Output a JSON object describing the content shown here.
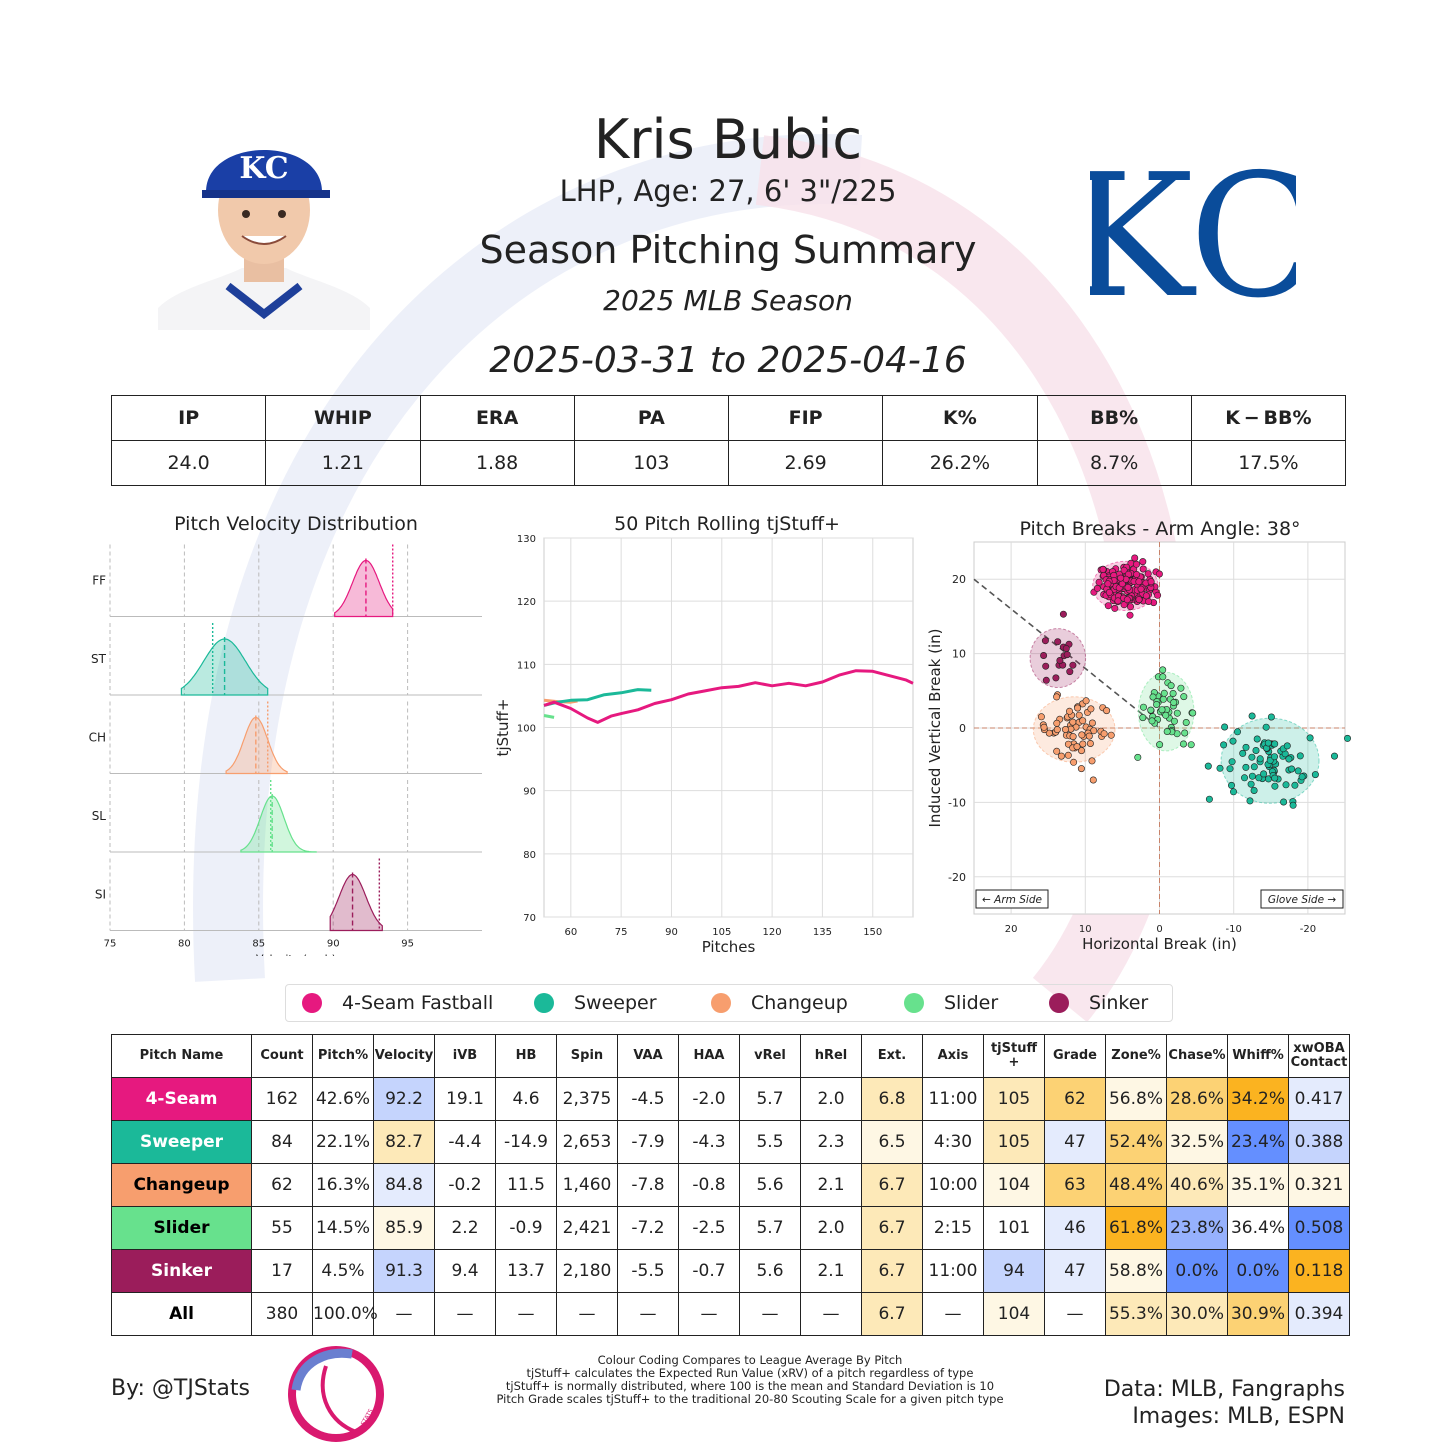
{
  "header": {
    "name": "Kris Bubic",
    "info": "LHP, Age: 27, 6' 3\"/225",
    "title": "Season Pitching Summary",
    "season": "2025 MLB Season",
    "dates": "2025-03-31 to 2025-04-16",
    "team_logo_text": "KC"
  },
  "summary": {
    "headers": [
      "IP",
      "WHIP",
      "ERA",
      "PA",
      "FIP",
      "K%",
      "BB%",
      "K − BB%"
    ],
    "values": [
      "24.0",
      "1.21",
      "1.88",
      "103",
      "2.69",
      "26.2%",
      "8.7%",
      "17.5%"
    ]
  },
  "colors": {
    "FF": "#e6197f",
    "ST": "#1bb999",
    "CH": "#f79e6e",
    "SL": "#67e18d",
    "SI": "#9b1d5b",
    "good_dark": "#fbb320",
    "good_mid": "#fcd274",
    "good_light": "#fde9b8",
    "good_pale": "#fef7e4",
    "bad_dark": "#648fff",
    "bad_mid": "#96b1fd",
    "bad_light": "#c5d4fd",
    "bad_pale": "#e4ebfd",
    "neutral": "#ffffff"
  },
  "chart_data": [
    {
      "type": "area",
      "title": "Pitch Velocity Distribution",
      "xlabel": "Velocity (mph)",
      "xlim": [
        75,
        100
      ],
      "xticks": [
        75,
        80,
        85,
        90,
        95
      ],
      "series": [
        {
          "name": "FF",
          "mean": 92.2,
          "sd": 0.9,
          "min": 90.1,
          "max": 94.0,
          "league": 94.0
        },
        {
          "name": "ST",
          "mean": 82.7,
          "sd": 1.4,
          "min": 79.8,
          "max": 85.6,
          "league": 81.9
        },
        {
          "name": "CH",
          "mean": 84.8,
          "sd": 0.8,
          "min": 82.8,
          "max": 86.9,
          "league": 85.6
        },
        {
          "name": "SL",
          "mean": 85.9,
          "sd": 0.8,
          "min": 83.8,
          "max": 88.9,
          "league": 85.8
        },
        {
          "name": "SI",
          "mean": 91.3,
          "sd": 0.9,
          "min": 89.8,
          "max": 93.3,
          "league": 93.1
        }
      ]
    },
    {
      "type": "line",
      "title": "50 Pitch Rolling tjStuff+",
      "xlabel": "Pitches",
      "ylabel": "tjStuff+",
      "xlim": [
        52,
        162
      ],
      "ylim": [
        70,
        130
      ],
      "xticks": [
        60,
        75,
        90,
        105,
        120,
        135,
        150
      ],
      "yticks": [
        70,
        80,
        90,
        100,
        110,
        120,
        130
      ],
      "series": [
        {
          "name": "FF",
          "x": [
            52,
            55,
            60,
            65,
            68,
            72,
            75,
            80,
            85,
            90,
            95,
            100,
            105,
            110,
            115,
            120,
            125,
            130,
            135,
            140,
            145,
            150,
            155,
            160,
            162
          ],
          "y": [
            103.5,
            104,
            103,
            101.5,
            100.8,
            101.8,
            102.2,
            102.8,
            103.8,
            104.4,
            105.3,
            105.8,
            106.3,
            106.5,
            107.1,
            106.6,
            107.0,
            106.6,
            107.2,
            108.3,
            109.0,
            108.9,
            108.2,
            107.5,
            107.0
          ]
        },
        {
          "name": "ST",
          "x": [
            52,
            56,
            60,
            65,
            70,
            75,
            80,
            84
          ],
          "y": [
            103.5,
            104,
            104.3,
            104.4,
            105.2,
            105.5,
            106.0,
            105.9
          ]
        },
        {
          "name": "CH",
          "x": [
            52,
            56,
            60,
            62
          ],
          "y": [
            104.3,
            104.1,
            104.0,
            104.2
          ]
        },
        {
          "name": "SL",
          "x": [
            52,
            55
          ],
          "y": [
            101.9,
            101.6
          ]
        }
      ]
    },
    {
      "type": "scatter",
      "title": "Pitch Breaks - Arm Angle: 38°",
      "xlabel": "Horizontal Break (in)",
      "ylabel": "Induced Vertical Break (in)",
      "xlim": [
        25,
        -25
      ],
      "ylim": [
        -25,
        25
      ],
      "xticks": [
        20,
        10,
        0,
        -10,
        -20
      ],
      "yticks": [
        -20,
        -10,
        0,
        10,
        20
      ],
      "arm_side_label": "← Arm Side",
      "glove_side_label": "Glove Side →",
      "clusters": [
        {
          "name": "FF",
          "hb": 4.6,
          "ivb": 19.1,
          "sx": 2.0,
          "sy": 1.5,
          "n": 162
        },
        {
          "name": "ST",
          "hb": -14.9,
          "ivb": -4.4,
          "sx": 3.0,
          "sy": 2.6,
          "n": 84
        },
        {
          "name": "CH",
          "hb": 11.5,
          "ivb": -0.2,
          "sx": 2.5,
          "sy": 2.0,
          "n": 62
        },
        {
          "name": "SL",
          "hb": -0.9,
          "ivb": 2.2,
          "sx": 1.7,
          "sy": 2.4,
          "n": 55
        },
        {
          "name": "SI",
          "hb": 13.7,
          "ivb": 9.4,
          "sx": 1.7,
          "sy": 1.8,
          "n": 17
        }
      ]
    }
  ],
  "legend": [
    {
      "key": "FF",
      "label": "4-Seam Fastball"
    },
    {
      "key": "ST",
      "label": "Sweeper"
    },
    {
      "key": "CH",
      "label": "Changeup"
    },
    {
      "key": "SL",
      "label": "Slider"
    },
    {
      "key": "SI",
      "label": "Sinker"
    }
  ],
  "pitch_table": {
    "headers": [
      "Pitch Name",
      "Count",
      "Pitch%",
      "Velocity",
      "iVB",
      "HB",
      "Spin",
      "VAA",
      "HAA",
      "vRel",
      "hRel",
      "Ext.",
      "Axis",
      "tjStuff +",
      "Grade",
      "Zone%",
      "Chase%",
      "Whiff%",
      "xwOBA Contact"
    ],
    "rows": [
      {
        "key": "FF",
        "name": "4-Seam",
        "text_color": "#ffffff",
        "cells": [
          "162",
          "42.6%",
          "92.2",
          "19.1",
          "4.6",
          "2,375",
          "-4.5",
          "-2.0",
          "5.7",
          "2.0",
          "6.8",
          "11:00",
          "105",
          "62",
          "56.8%",
          "28.6%",
          "34.2%",
          "0.417"
        ],
        "shades": [
          "neutral",
          "neutral",
          "bad_light",
          "neutral",
          "neutral",
          "neutral",
          "neutral",
          "neutral",
          "neutral",
          "neutral",
          "good_light",
          "neutral",
          "good_light",
          "good_mid",
          "good_pale",
          "good_mid",
          "good_dark",
          "bad_pale"
        ]
      },
      {
        "key": "ST",
        "name": "Sweeper",
        "text_color": "#ffffff",
        "cells": [
          "84",
          "22.1%",
          "82.7",
          "-4.4",
          "-14.9",
          "2,653",
          "-7.9",
          "-4.3",
          "5.5",
          "2.3",
          "6.5",
          "4:30",
          "105",
          "47",
          "52.4%",
          "32.5%",
          "23.4%",
          "0.388"
        ],
        "shades": [
          "neutral",
          "neutral",
          "good_light",
          "neutral",
          "neutral",
          "neutral",
          "neutral",
          "neutral",
          "neutral",
          "neutral",
          "good_pale",
          "neutral",
          "good_light",
          "bad_pale",
          "good_mid",
          "good_pale",
          "bad_dark",
          "bad_light"
        ]
      },
      {
        "key": "CH",
        "name": "Changeup",
        "text_color": "#000000",
        "cells": [
          "62",
          "16.3%",
          "84.8",
          "-0.2",
          "11.5",
          "1,460",
          "-7.8",
          "-0.8",
          "5.6",
          "2.1",
          "6.7",
          "10:00",
          "104",
          "63",
          "48.4%",
          "40.6%",
          "35.1%",
          "0.321"
        ],
        "shades": [
          "neutral",
          "neutral",
          "bad_pale",
          "neutral",
          "neutral",
          "neutral",
          "neutral",
          "neutral",
          "neutral",
          "neutral",
          "good_light",
          "neutral",
          "good_pale",
          "good_mid",
          "good_mid",
          "good_light",
          "good_pale",
          "good_pale"
        ]
      },
      {
        "key": "SL",
        "name": "Slider",
        "text_color": "#000000",
        "cells": [
          "55",
          "14.5%",
          "85.9",
          "2.2",
          "-0.9",
          "2,421",
          "-7.2",
          "-2.5",
          "5.7",
          "2.0",
          "6.7",
          "2:15",
          "101",
          "46",
          "61.8%",
          "23.8%",
          "36.4%",
          "0.508"
        ],
        "shades": [
          "neutral",
          "neutral",
          "good_pale",
          "neutral",
          "neutral",
          "neutral",
          "neutral",
          "neutral",
          "neutral",
          "neutral",
          "good_light",
          "neutral",
          "neutral",
          "bad_pale",
          "good_dark",
          "bad_mid",
          "neutral",
          "bad_dark"
        ]
      },
      {
        "key": "SI",
        "name": "Sinker",
        "text_color": "#ffffff",
        "cells": [
          "17",
          "4.5%",
          "91.3",
          "9.4",
          "13.7",
          "2,180",
          "-5.5",
          "-0.7",
          "5.6",
          "2.1",
          "6.7",
          "11:00",
          "94",
          "47",
          "58.8%",
          "0.0%",
          "0.0%",
          "0.118"
        ],
        "shades": [
          "neutral",
          "neutral",
          "bad_light",
          "neutral",
          "neutral",
          "neutral",
          "neutral",
          "neutral",
          "neutral",
          "neutral",
          "good_light",
          "neutral",
          "bad_light",
          "bad_pale",
          "good_pale",
          "bad_dark",
          "bad_dark",
          "good_dark"
        ]
      },
      {
        "key": "ALL",
        "name": "All",
        "text_color": "#000000",
        "cells": [
          "380",
          "100.0%",
          "—",
          "—",
          "—",
          "—",
          "—",
          "—",
          "—",
          "—",
          "6.7",
          "—",
          "104",
          "—",
          "55.3%",
          "30.0%",
          "30.9%",
          "0.394"
        ],
        "shades": [
          "neutral",
          "neutral",
          "neutral",
          "neutral",
          "neutral",
          "neutral",
          "neutral",
          "neutral",
          "neutral",
          "neutral",
          "good_light",
          "neutral",
          "good_pale",
          "neutral",
          "good_light",
          "good_light",
          "good_mid",
          "bad_pale"
        ]
      }
    ]
  },
  "footer": {
    "by": "By: @TJStats",
    "notes": [
      "Colour Coding Compares to League Average By Pitch",
      "tjStuff+ calculates the Expected Run Value (xRV) of a pitch regardless of type",
      "tjStuff+ is normally distributed, where 100 is the mean and Standard Deviation is 10",
      "Pitch Grade scales tjStuff+ to the traditional 20-80 Scouting Scale for a given pitch type"
    ],
    "data_source": "Data: MLB, Fangraphs",
    "images_source": "Images: MLB, ESPN",
    "logo_text": "STATS"
  }
}
